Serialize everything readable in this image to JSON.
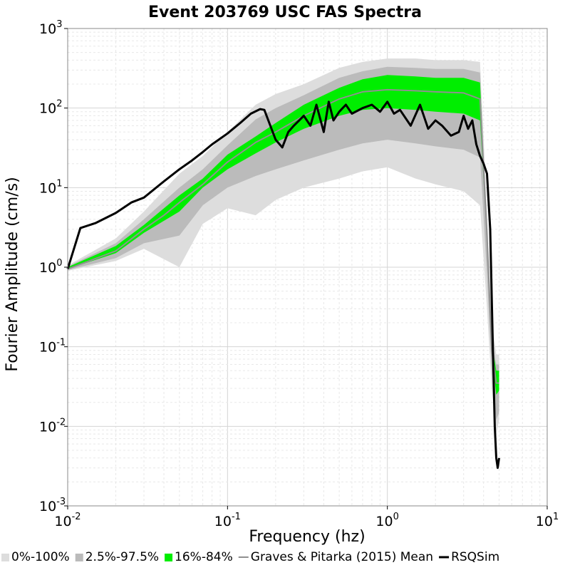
{
  "chart_data": {
    "type": "line",
    "title": "Event 203769 USC FAS Spectra",
    "xlabel": "Frequency (hz)",
    "ylabel": "Fourier Amplitude (cm/s)",
    "xscale": "log",
    "yscale": "log",
    "xlim": [
      0.01,
      10
    ],
    "ylim": [
      0.001,
      1000
    ],
    "grid": true,
    "legend_position": "bottom",
    "x_ticks": [
      {
        "base": "10",
        "exp": "-2",
        "value": 0.01
      },
      {
        "base": "10",
        "exp": "-1",
        "value": 0.1
      },
      {
        "base": "10",
        "exp": "0",
        "value": 1
      },
      {
        "base": "10",
        "exp": "1",
        "value": 10
      }
    ],
    "y_ticks": [
      {
        "base": "10",
        "exp": "-3",
        "value": 0.001
      },
      {
        "base": "10",
        "exp": "-2",
        "value": 0.01
      },
      {
        "base": "10",
        "exp": "-1",
        "value": 0.1
      },
      {
        "base": "10",
        "exp": "0",
        "value": 1
      },
      {
        "base": "10",
        "exp": "1",
        "value": 10
      },
      {
        "base": "10",
        "exp": "2",
        "value": 100
      },
      {
        "base": "10",
        "exp": "3",
        "value": 1000
      }
    ],
    "bands": [
      {
        "name": "0%-100%",
        "color": "#dddddd",
        "x": [
          0.01,
          0.02,
          0.03,
          0.05,
          0.07,
          0.1,
          0.15,
          0.2,
          0.3,
          0.5,
          0.7,
          1.0,
          1.5,
          2.0,
          3.0,
          3.8,
          4.2,
          4.5,
          4.8,
          5.0
        ],
        "lower": [
          0.9,
          1.2,
          1.7,
          1.0,
          3.5,
          5.5,
          4.5,
          7.0,
          10,
          13,
          16,
          18,
          13,
          11,
          9,
          6,
          0.3,
          0.03,
          0.008,
          0.012
        ],
        "upper": [
          1.05,
          2.3,
          5.0,
          15,
          25,
          50,
          110,
          150,
          200,
          320,
          380,
          420,
          420,
          400,
          400,
          380,
          5,
          0.2,
          0.08,
          0.08
        ]
      },
      {
        "name": "2.5%-97.5%",
        "color": "#bbbbbb",
        "x": [
          0.01,
          0.02,
          0.03,
          0.05,
          0.07,
          0.1,
          0.15,
          0.2,
          0.3,
          0.5,
          0.7,
          1.0,
          1.5,
          2.0,
          3.0,
          3.8,
          4.2,
          4.5,
          4.8,
          5.0
        ],
        "lower": [
          0.92,
          1.3,
          2.0,
          2.5,
          6,
          10,
          14,
          17,
          22,
          30,
          36,
          40,
          36,
          33,
          30,
          24,
          0.8,
          0.05,
          0.012,
          0.015
        ],
        "upper": [
          1.02,
          2.0,
          4.0,
          10,
          17,
          34,
          72,
          100,
          145,
          240,
          290,
          330,
          320,
          310,
          310,
          280,
          3,
          0.13,
          0.06,
          0.06
        ]
      },
      {
        "name": "16%-84%",
        "color": "#00ee00",
        "x": [
          0.01,
          0.02,
          0.03,
          0.05,
          0.07,
          0.1,
          0.15,
          0.2,
          0.3,
          0.5,
          0.7,
          1.0,
          1.5,
          2.0,
          3.0,
          3.8,
          4.2,
          4.5,
          4.8,
          5.0
        ],
        "lower": [
          0.95,
          1.5,
          2.7,
          5.0,
          10,
          17,
          27,
          37,
          55,
          80,
          95,
          100,
          95,
          90,
          85,
          70,
          2.2,
          0.08,
          0.025,
          0.028
        ],
        "upper": [
          1.0,
          1.85,
          3.4,
          8.0,
          13,
          26,
          44,
          65,
          110,
          180,
          230,
          260,
          250,
          240,
          240,
          210,
          2.8,
          0.11,
          0.05,
          0.05
        ]
      }
    ],
    "series": [
      {
        "name": "Graves & Pitarka (2015) Mean",
        "color": "#909090",
        "x": [
          0.01,
          0.02,
          0.03,
          0.04,
          0.05,
          0.07,
          0.1,
          0.15,
          0.2,
          0.3,
          0.5,
          0.7,
          1.0,
          1.5,
          2.0,
          3.0,
          3.8,
          4.2,
          4.5,
          4.8,
          5.0
        ],
        "y": [
          0.95,
          1.6,
          3.0,
          4.5,
          6.5,
          11,
          21,
          37,
          50,
          80,
          130,
          160,
          170,
          165,
          160,
          155,
          130,
          2.5,
          0.09,
          0.035,
          0.035
        ]
      },
      {
        "name": "RSQSim",
        "color": "#000000",
        "x": [
          0.01,
          0.012,
          0.015,
          0.02,
          0.025,
          0.03,
          0.04,
          0.05,
          0.06,
          0.07,
          0.08,
          0.1,
          0.12,
          0.14,
          0.16,
          0.17,
          0.18,
          0.2,
          0.22,
          0.24,
          0.26,
          0.3,
          0.33,
          0.36,
          0.4,
          0.43,
          0.46,
          0.5,
          0.55,
          0.6,
          0.7,
          0.8,
          0.9,
          1.0,
          1.1,
          1.2,
          1.4,
          1.6,
          1.8,
          2.0,
          2.2,
          2.5,
          2.8,
          3.0,
          3.2,
          3.4,
          3.6,
          3.8,
          4.0,
          4.2,
          4.4,
          4.5,
          4.6,
          4.7,
          4.8,
          4.9,
          5.0
        ],
        "y": [
          0.95,
          3.1,
          3.6,
          4.8,
          6.5,
          7.5,
          12,
          17,
          22,
          28,
          35,
          48,
          65,
          85,
          97,
          95,
          70,
          40,
          32,
          50,
          60,
          80,
          60,
          110,
          50,
          120,
          70,
          90,
          110,
          85,
          100,
          110,
          90,
          120,
          85,
          95,
          60,
          110,
          55,
          70,
          60,
          45,
          50,
          80,
          55,
          70,
          35,
          25,
          20,
          15,
          3,
          0.4,
          0.06,
          0.01,
          0.004,
          0.003,
          0.004
        ]
      }
    ]
  }
}
